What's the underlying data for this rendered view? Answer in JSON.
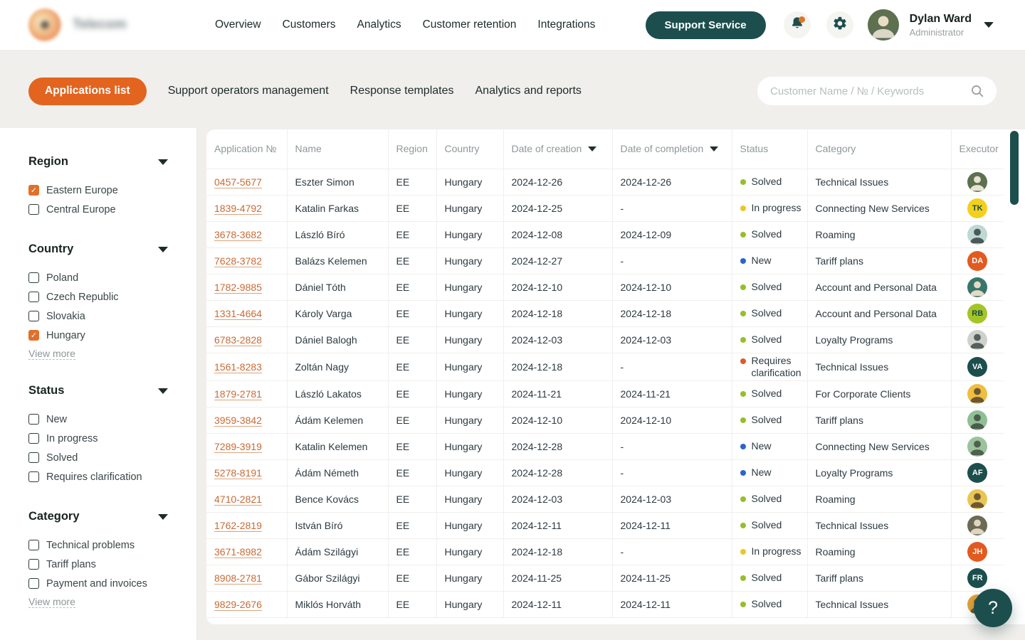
{
  "brand": {
    "name": "Telecom"
  },
  "nav": {
    "items": [
      "Overview",
      "Customers",
      "Analytics",
      "Customer retention",
      "Integrations"
    ],
    "support_button": "Support Service"
  },
  "user": {
    "name": "Dylan Ward",
    "role": "Administrator"
  },
  "tabs": [
    {
      "label": "Applications list",
      "active": true
    },
    {
      "label": "Support operators management",
      "active": false
    },
    {
      "label": "Response templates",
      "active": false
    },
    {
      "label": "Analytics and reports",
      "active": false
    }
  ],
  "search": {
    "placeholder": "Customer Name / № / Keywords"
  },
  "colors": {
    "accent_orange": "#e2641f",
    "brand_teal": "#1d4e4e",
    "status": {
      "Solved": "#94bf2c",
      "In progress": "#e9c727",
      "New": "#2c63cf",
      "Requires clarification": "#df5a26"
    }
  },
  "filters": [
    {
      "title": "Region",
      "items": [
        {
          "label": "Eastern Europe",
          "checked": true
        },
        {
          "label": "Central Europe",
          "checked": false
        }
      ],
      "view_more": null
    },
    {
      "title": "Country",
      "items": [
        {
          "label": "Poland",
          "checked": false
        },
        {
          "label": "Czech Republic",
          "checked": false
        },
        {
          "label": "Slovakia",
          "checked": false
        },
        {
          "label": "Hungary",
          "checked": true
        }
      ],
      "view_more": "View more"
    },
    {
      "title": "Status",
      "items": [
        {
          "label": "New",
          "checked": false
        },
        {
          "label": "In progress",
          "checked": false
        },
        {
          "label": "Solved",
          "checked": false
        },
        {
          "label": "Requires clarification",
          "checked": false
        }
      ],
      "view_more": null
    },
    {
      "title": "Category",
      "items": [
        {
          "label": "Technical problems",
          "checked": false
        },
        {
          "label": "Tariff plans",
          "checked": false
        },
        {
          "label": "Payment and invoices",
          "checked": false
        }
      ],
      "view_more": "View more"
    }
  ],
  "table": {
    "columns": [
      {
        "label": "Application №",
        "sortable": false
      },
      {
        "label": "Name",
        "sortable": false
      },
      {
        "label": "Region",
        "sortable": false
      },
      {
        "label": "Country",
        "sortable": false
      },
      {
        "label": "Date of creation",
        "sortable": true
      },
      {
        "label": "Date of completion",
        "sortable": true
      },
      {
        "label": "Status",
        "sortable": false
      },
      {
        "label": "Category",
        "sortable": false
      },
      {
        "label": "Executor",
        "sortable": false
      }
    ],
    "rows": [
      {
        "id": "0457-5677",
        "name": "Eszter Simon",
        "region": "EE",
        "country": "Hungary",
        "created": "2024-12-26",
        "completed": "2024-12-26",
        "status": "Solved",
        "category": "Technical Issues",
        "avatar": {
          "kind": "photo",
          "bg": "#5d7050",
          "fg": "#e9e2d2"
        }
      },
      {
        "id": "1839-4792",
        "name": "Katalin Farkas",
        "region": "EE",
        "country": "Hungary",
        "created": "2024-12-25",
        "completed": "-",
        "status": "In progress",
        "category": "Connecting New Services",
        "avatar": {
          "kind": "initials",
          "text": "TK",
          "bg": "#f2d01d",
          "fg": "#1d4b4b"
        }
      },
      {
        "id": "3678-3682",
        "name": "László Bíró",
        "region": "EE",
        "country": "Hungary",
        "created": "2024-12-08",
        "completed": "2024-12-09",
        "status": "Solved",
        "category": "Roaming",
        "avatar": {
          "kind": "photo",
          "bg": "#bdd9d2",
          "fg": "#4a5a58"
        }
      },
      {
        "id": "7628-3782",
        "name": "Balázs Kelemen",
        "region": "EE",
        "country": "Hungary",
        "created": "2024-12-27",
        "completed": "-",
        "status": "New",
        "category": "Tariff plans",
        "avatar": {
          "kind": "initials",
          "text": "DA",
          "bg": "#e25a20",
          "fg": "#ffffff"
        }
      },
      {
        "id": "1782-9885",
        "name": "Dániel Tóth",
        "region": "EE",
        "country": "Hungary",
        "created": "2024-12-10",
        "completed": "2024-12-10",
        "status": "Solved",
        "category": "Account and Personal Data",
        "avatar": {
          "kind": "photo",
          "bg": "#37766b",
          "fg": "#e7d9c4"
        }
      },
      {
        "id": "1331-4664",
        "name": "Károly Varga",
        "region": "EE",
        "country": "Hungary",
        "created": "2024-12-18",
        "completed": "2024-12-18",
        "status": "Solved",
        "category": "Account and Personal Data",
        "avatar": {
          "kind": "initials",
          "text": "RB",
          "bg": "#a3c626",
          "fg": "#1d4b4b"
        }
      },
      {
        "id": "6783-2828",
        "name": "Dániel Balogh",
        "region": "EE",
        "country": "Hungary",
        "created": "2024-12-03",
        "completed": "2024-12-03",
        "status": "Solved",
        "category": "Loyalty Programs",
        "avatar": {
          "kind": "photo",
          "bg": "#cfd2cc",
          "fg": "#55605e"
        }
      },
      {
        "id": "1561-8283",
        "name": "Zoltán Nagy",
        "region": "EE",
        "country": "Hungary",
        "created": "2024-12-18",
        "completed": "-",
        "status": "Requires clarification",
        "category": "Technical Issues",
        "avatar": {
          "kind": "initials",
          "text": "VA",
          "bg": "#1d4e4e",
          "fg": "#ffffff"
        }
      },
      {
        "id": "1879-2781",
        "name": "László Lakatos",
        "region": "EE",
        "country": "Hungary",
        "created": "2024-11-21",
        "completed": "2024-11-21",
        "status": "Solved",
        "category": "For Corporate Clients",
        "avatar": {
          "kind": "photo",
          "bg": "#eebf3e",
          "fg": "#6b5636"
        }
      },
      {
        "id": "3959-3842",
        "name": "Ádám Kelemen",
        "region": "EE",
        "country": "Hungary",
        "created": "2024-12-10",
        "completed": "2024-12-10",
        "status": "Solved",
        "category": "Tariff plans",
        "avatar": {
          "kind": "photo",
          "bg": "#8fbf94",
          "fg": "#4c5c4c"
        }
      },
      {
        "id": "7289-3919",
        "name": "Katalin Kelemen",
        "region": "EE",
        "country": "Hungary",
        "created": "2024-12-28",
        "completed": "-",
        "status": "New",
        "category": "Connecting New Services",
        "avatar": {
          "kind": "photo",
          "bg": "#9ac39b",
          "fg": "#50604f"
        }
      },
      {
        "id": "5278-8191",
        "name": "Ádám Németh",
        "region": "EE",
        "country": "Hungary",
        "created": "2024-12-28",
        "completed": "-",
        "status": "New",
        "category": "Loyalty Programs",
        "avatar": {
          "kind": "initials",
          "text": "AF",
          "bg": "#1d4e4e",
          "fg": "#ffffff"
        }
      },
      {
        "id": "4710-2821",
        "name": "Bence Kovács",
        "region": "EE",
        "country": "Hungary",
        "created": "2024-12-03",
        "completed": "2024-12-03",
        "status": "Solved",
        "category": "Roaming",
        "avatar": {
          "kind": "photo",
          "bg": "#e9c554",
          "fg": "#6d5a33"
        }
      },
      {
        "id": "1762-2819",
        "name": "István Bíró",
        "region": "EE",
        "country": "Hungary",
        "created": "2024-12-11",
        "completed": "2024-12-11",
        "status": "Solved",
        "category": "Technical Issues",
        "avatar": {
          "kind": "photo",
          "bg": "#6a6a55",
          "fg": "#ded4bf"
        }
      },
      {
        "id": "3671-8982",
        "name": "Ádám Szilágyi",
        "region": "EE",
        "country": "Hungary",
        "created": "2024-12-18",
        "completed": "-",
        "status": "In progress",
        "category": "Roaming",
        "avatar": {
          "kind": "initials",
          "text": "JH",
          "bg": "#e25a20",
          "fg": "#ffffff"
        }
      },
      {
        "id": "8908-2781",
        "name": "Gábor Szilágyi",
        "region": "EE",
        "country": "Hungary",
        "created": "2024-11-25",
        "completed": "2024-11-25",
        "status": "Solved",
        "category": "Tariff plans",
        "avatar": {
          "kind": "initials",
          "text": "FR",
          "bg": "#1d4e4e",
          "fg": "#ffffff"
        }
      },
      {
        "id": "9829-2676",
        "name": "Miklós Horváth",
        "region": "EE",
        "country": "Hungary",
        "created": "2024-12-11",
        "completed": "2024-12-11",
        "status": "Solved",
        "category": "Technical Issues",
        "avatar": {
          "kind": "photo",
          "bg": "#e2a23c",
          "fg": "#6b5430"
        }
      }
    ]
  },
  "help_button": "?"
}
